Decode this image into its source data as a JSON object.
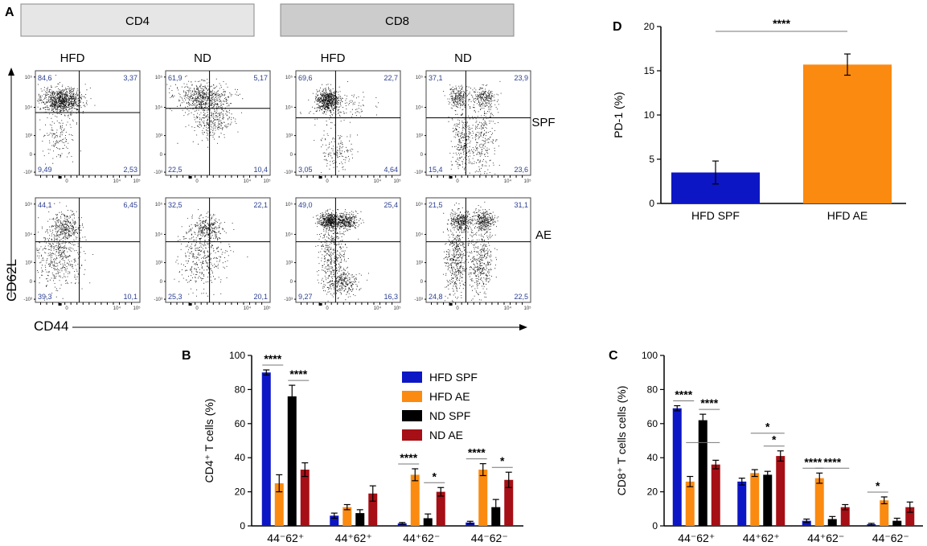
{
  "panel_a": {
    "letter": "A",
    "group_headers": [
      {
        "label": "CD4",
        "color": "#e6e6e6"
      },
      {
        "label": "CD8",
        "color": "#cccccc"
      }
    ],
    "column_labels": [
      "HFD",
      "ND",
      "HFD",
      "ND"
    ],
    "row_labels": [
      "SPF",
      "AE"
    ],
    "y_axis_label": "CD62L",
    "x_axis_label": "CD44",
    "tick_labels": {
      "y": [
        "10⁵",
        "10⁴",
        "10³",
        "0",
        "-10³"
      ],
      "x": [
        "0",
        "10⁴",
        "10⁵"
      ]
    },
    "quadrants": [
      [
        {
          "tl": "84,6",
          "tr": "3,37",
          "bl": "9,49",
          "br": "2,53"
        },
        {
          "tl": "61,9",
          "tr": "5,17",
          "bl": "22,5",
          "br": "10,4"
        },
        {
          "tl": "69,6",
          "tr": "22,7",
          "bl": "3,05",
          "br": "4,64"
        },
        {
          "tl": "37,1",
          "tr": "23,9",
          "bl": "15,4",
          "br": "23,6"
        }
      ],
      [
        {
          "tl": "44,1",
          "tr": "6,45",
          "bl": "39,3",
          "br": "10,1"
        },
        {
          "tl": "32,5",
          "tr": "22,1",
          "bl": "25,3",
          "br": "20,1"
        },
        {
          "tl": "49,0",
          "tr": "25,4",
          "bl": "9,27",
          "br": "16,3"
        },
        {
          "tl": "21,5",
          "tr": "31,1",
          "bl": "24,8",
          "br": "22,5"
        }
      ]
    ]
  },
  "chart_data": [
    {
      "panel": "D",
      "type": "bar",
      "categories": [
        "HFD SPF",
        "HFD AE"
      ],
      "values": [
        3.5,
        15.7
      ],
      "errors": [
        1.3,
        1.2
      ],
      "colors": [
        "#0d16c4",
        "#fb8a10"
      ],
      "ylabel": "PD-1 (%)",
      "ylim": [
        0,
        20
      ],
      "yticks": [
        "0",
        "5",
        "10",
        "15",
        "20"
      ],
      "annotations": [
        {
          "text": "****",
          "between": [
            0,
            1
          ]
        }
      ]
    },
    {
      "panel": "B",
      "type": "bar",
      "categories": [
        "44⁻62⁺",
        "44⁺62⁺",
        "44⁺62⁻",
        "44⁻62⁻"
      ],
      "series": [
        {
          "name": "HFD SPF",
          "color": "#0d16c4",
          "values": [
            90,
            6,
            1.5,
            2
          ],
          "errors": [
            1.5,
            1.5,
            0.5,
            0.7
          ]
        },
        {
          "name": "HFD AE",
          "color": "#fb8a10",
          "values": [
            25,
            11,
            30,
            33
          ],
          "errors": [
            5,
            1.5,
            3.5,
            3.5
          ]
        },
        {
          "name": "ND   SPF",
          "color": "#000000",
          "values": [
            76,
            7.5,
            4.5,
            11
          ],
          "errors": [
            6.5,
            2,
            2.5,
            4.5
          ]
        },
        {
          "name": "ND   AE",
          "color": "#a50f15",
          "values": [
            33,
            19,
            20,
            27
          ],
          "errors": [
            4,
            4.5,
            2.5,
            4.5
          ]
        }
      ],
      "ylabel": "CD4⁺ T cells (%)",
      "ylim": [
        0,
        100
      ],
      "yticks": [
        "0",
        "20",
        "40",
        "60",
        "80",
        "100"
      ],
      "annotations": [
        {
          "text": "****",
          "cat": 0,
          "from": 0,
          "to": 1
        },
        {
          "text": "****",
          "cat": 0,
          "from": 2,
          "to": 3
        },
        {
          "text": "****",
          "cat": 2,
          "from": 0,
          "to": 1
        },
        {
          "text": "*",
          "cat": 2,
          "from": 2,
          "to": 3
        },
        {
          "text": "****",
          "cat": 3,
          "from": 0,
          "to": 1
        },
        {
          "text": "*",
          "cat": 3,
          "from": 2,
          "to": 3
        }
      ]
    },
    {
      "panel": "C",
      "type": "bar",
      "categories": [
        "44⁻62⁺",
        "44⁺62⁺",
        "44⁺62⁻",
        "44⁻62⁻"
      ],
      "series": [
        {
          "name": "HFD SPF",
          "color": "#0d16c4",
          "values": [
            69,
            26,
            3,
            1
          ],
          "errors": [
            1.5,
            2,
            1,
            0.5
          ]
        },
        {
          "name": "HFD AE",
          "color": "#fb8a10",
          "values": [
            26,
            31,
            28,
            15
          ],
          "errors": [
            3,
            2,
            3,
            2
          ]
        },
        {
          "name": "ND   SPF",
          "color": "#000000",
          "values": [
            62,
            30,
            4,
            3
          ],
          "errors": [
            3.5,
            2,
            1.5,
            1.5
          ]
        },
        {
          "name": "ND   AE",
          "color": "#a50f15",
          "values": [
            36,
            41,
            11,
            11
          ],
          "errors": [
            2.5,
            3,
            1.5,
            3
          ]
        }
      ],
      "ylabel": "CD8⁺ T cells cells (%)",
      "ylim": [
        0,
        100
      ],
      "yticks": [
        "0",
        "20",
        "40",
        "60",
        "80",
        "100"
      ],
      "annotations": [
        {
          "text": "****",
          "cat": 0,
          "from": 0,
          "to": 1
        },
        {
          "text": "****",
          "cat": 0,
          "from": 2,
          "to": 3
        },
        {
          "text": "*",
          "cat": 0,
          "from": 1,
          "to": 3,
          "level": 2
        },
        {
          "text": "*",
          "cat": 1,
          "from": 2,
          "to": 3
        },
        {
          "text": "*",
          "cat": 1,
          "from": 1,
          "to": 3,
          "level": 2
        },
        {
          "text": "****",
          "cat": 2,
          "from": 0,
          "to": 1
        },
        {
          "text": "****",
          "cat": 2,
          "from": 1,
          "to": 3
        },
        {
          "text": "*",
          "cat": 3,
          "from": 0,
          "to": 1
        }
      ]
    }
  ],
  "labels": {
    "b": "B",
    "c": "C",
    "d": "D"
  }
}
